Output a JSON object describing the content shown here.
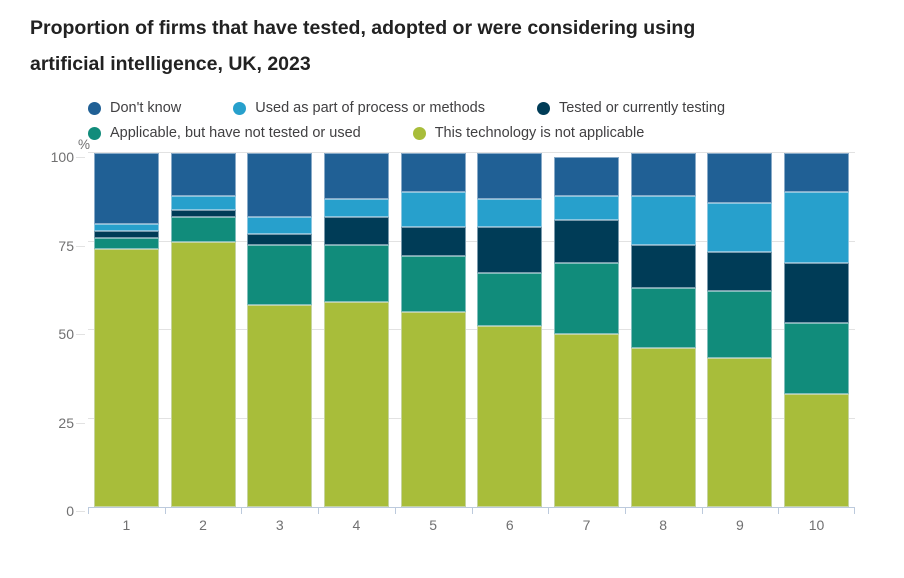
{
  "title_lines": [
    "Proportion of firms that have tested, adopted or were considering using",
    "artificial intelligence, UK, 2023"
  ],
  "legend": {
    "items": [
      {
        "label": "Don't know",
        "color": "#206095",
        "row": 1
      },
      {
        "label": "Used as part of process or methods",
        "color": "#27a0cc",
        "row": 1
      },
      {
        "label": "Tested or currently testing",
        "color": "#003c57",
        "row": 1
      },
      {
        "label": "Applicable, but have not tested or used",
        "color": "#118c7b",
        "row": 2
      },
      {
        "label": "This technology is not applicable",
        "color": "#a8bd3a",
        "row": 2
      }
    ]
  },
  "chart_data": {
    "type": "bar",
    "stacked": true,
    "title": "Proportion of firms that have tested, adopted or were considering using artificial intelligence, UK, 2023",
    "unit": "%",
    "xlabel": "",
    "ylabel": "%",
    "ylim": [
      0,
      100
    ],
    "yticks": [
      0,
      25,
      50,
      75,
      100
    ],
    "grid": true,
    "legend_position": "top",
    "categories": [
      "1",
      "2",
      "3",
      "4",
      "5",
      "6",
      "7",
      "8",
      "9",
      "10"
    ],
    "series": [
      {
        "name": "This technology is not applicable",
        "color": "#a8bd3a",
        "values": [
          73,
          75,
          57,
          58,
          55,
          51,
          49,
          45,
          42,
          32
        ]
      },
      {
        "name": "Applicable, but have not tested or used",
        "color": "#118c7b",
        "values": [
          3,
          7,
          17,
          16,
          16,
          15,
          20,
          17,
          19,
          20
        ]
      },
      {
        "name": "Tested or currently testing",
        "color": "#003c57",
        "values": [
          2,
          2,
          3,
          8,
          8,
          13,
          12,
          12,
          11,
          17
        ]
      },
      {
        "name": "Used as part of process or methods",
        "color": "#27a0cc",
        "values": [
          2,
          4,
          5,
          5,
          10,
          8,
          7,
          14,
          14,
          20
        ]
      },
      {
        "name": "Don't know",
        "color": "#206095",
        "values": [
          20,
          12,
          18,
          13,
          11,
          13,
          11,
          12,
          14,
          11
        ]
      }
    ]
  },
  "theme": {
    "title_text": "#222222",
    "legend_text": "#414042",
    "axis_text": "#707071",
    "grid": "#e2e2e2",
    "axis": "#bccadd"
  }
}
